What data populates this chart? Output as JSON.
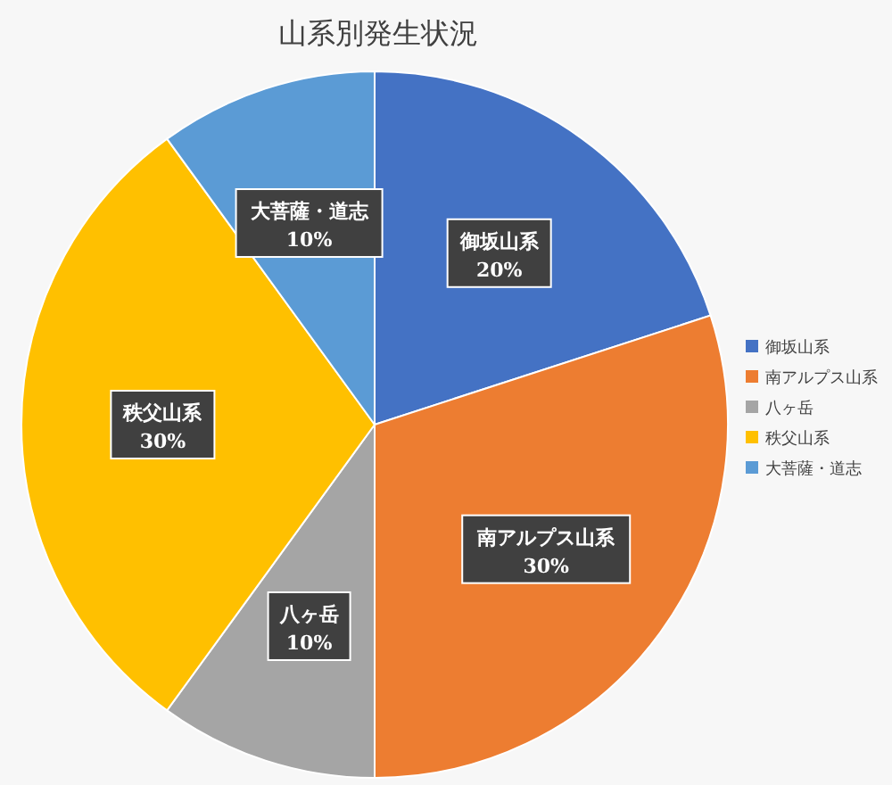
{
  "chart_data": {
    "type": "pie",
    "title": "山系別発生状況",
    "categories": [
      "御坂山系",
      "南アルプス山系",
      "八ヶ岳",
      "秩父山系",
      "大菩薩・道志"
    ],
    "values": [
      20,
      30,
      10,
      30,
      10
    ],
    "value_labels": [
      "20%",
      "30%",
      "10%",
      "30%",
      "10%"
    ],
    "colors": [
      "#4472c4",
      "#ed7d31",
      "#a5a5a5",
      "#ffc000",
      "#5b9bd5"
    ],
    "legend": "right"
  }
}
